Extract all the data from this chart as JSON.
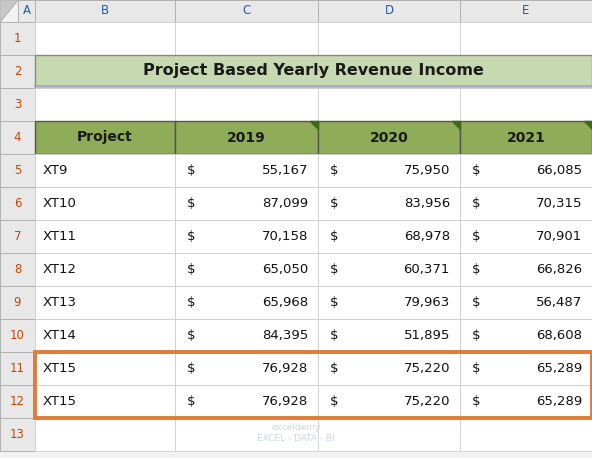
{
  "title": "Project Based Yearly Revenue Income",
  "title_bg": "#c6d9b0",
  "header_bg": "#8fac58",
  "header_text_color": "#1a1a1a",
  "col_headers": [
    "Project",
    "2019",
    "2020",
    "2021"
  ],
  "rows": [
    [
      "XT9",
      "55,167",
      "75,950",
      "66,085"
    ],
    [
      "XT10",
      "87,099",
      "83,956",
      "70,315"
    ],
    [
      "XT11",
      "70,158",
      "68,978",
      "70,901"
    ],
    [
      "XT12",
      "65,050",
      "60,371",
      "66,826"
    ],
    [
      "XT13",
      "65,968",
      "79,963",
      "56,487"
    ],
    [
      "XT14",
      "84,395",
      "51,895",
      "68,608"
    ],
    [
      "XT15",
      "76,928",
      "75,220",
      "65,289"
    ],
    [
      "XT15",
      "76,928",
      "75,220",
      "65,289"
    ]
  ],
  "highlight_border_color": "#e07b39",
  "excel_bg": "#f2f2f2",
  "col_header_bg": "#e8e8e8",
  "col_header_border": "#b0b0b0",
  "cell_bg": "#ffffff",
  "cell_border": "#d0d0d0",
  "row_label_color": "#cc4400",
  "col_label_color": "#1a5fb0",
  "watermark_color": "#b0c8e0",
  "watermark": "exceldemy\nEXCEL - DATA - BI",
  "corner_triangle_color": "#3a6b1a",
  "title_border_bottom": "#aaaacc",
  "font_size_title": 11.5,
  "font_size_header": 10,
  "font_size_data": 9.5,
  "font_size_labels": 8.5,
  "col_label_labels": [
    "A",
    "B",
    "C",
    "D",
    "E"
  ],
  "row_labels": [
    "1",
    "2",
    "3",
    "4",
    "5",
    "6",
    "7",
    "8",
    "9",
    "10",
    "11",
    "12",
    "13"
  ]
}
